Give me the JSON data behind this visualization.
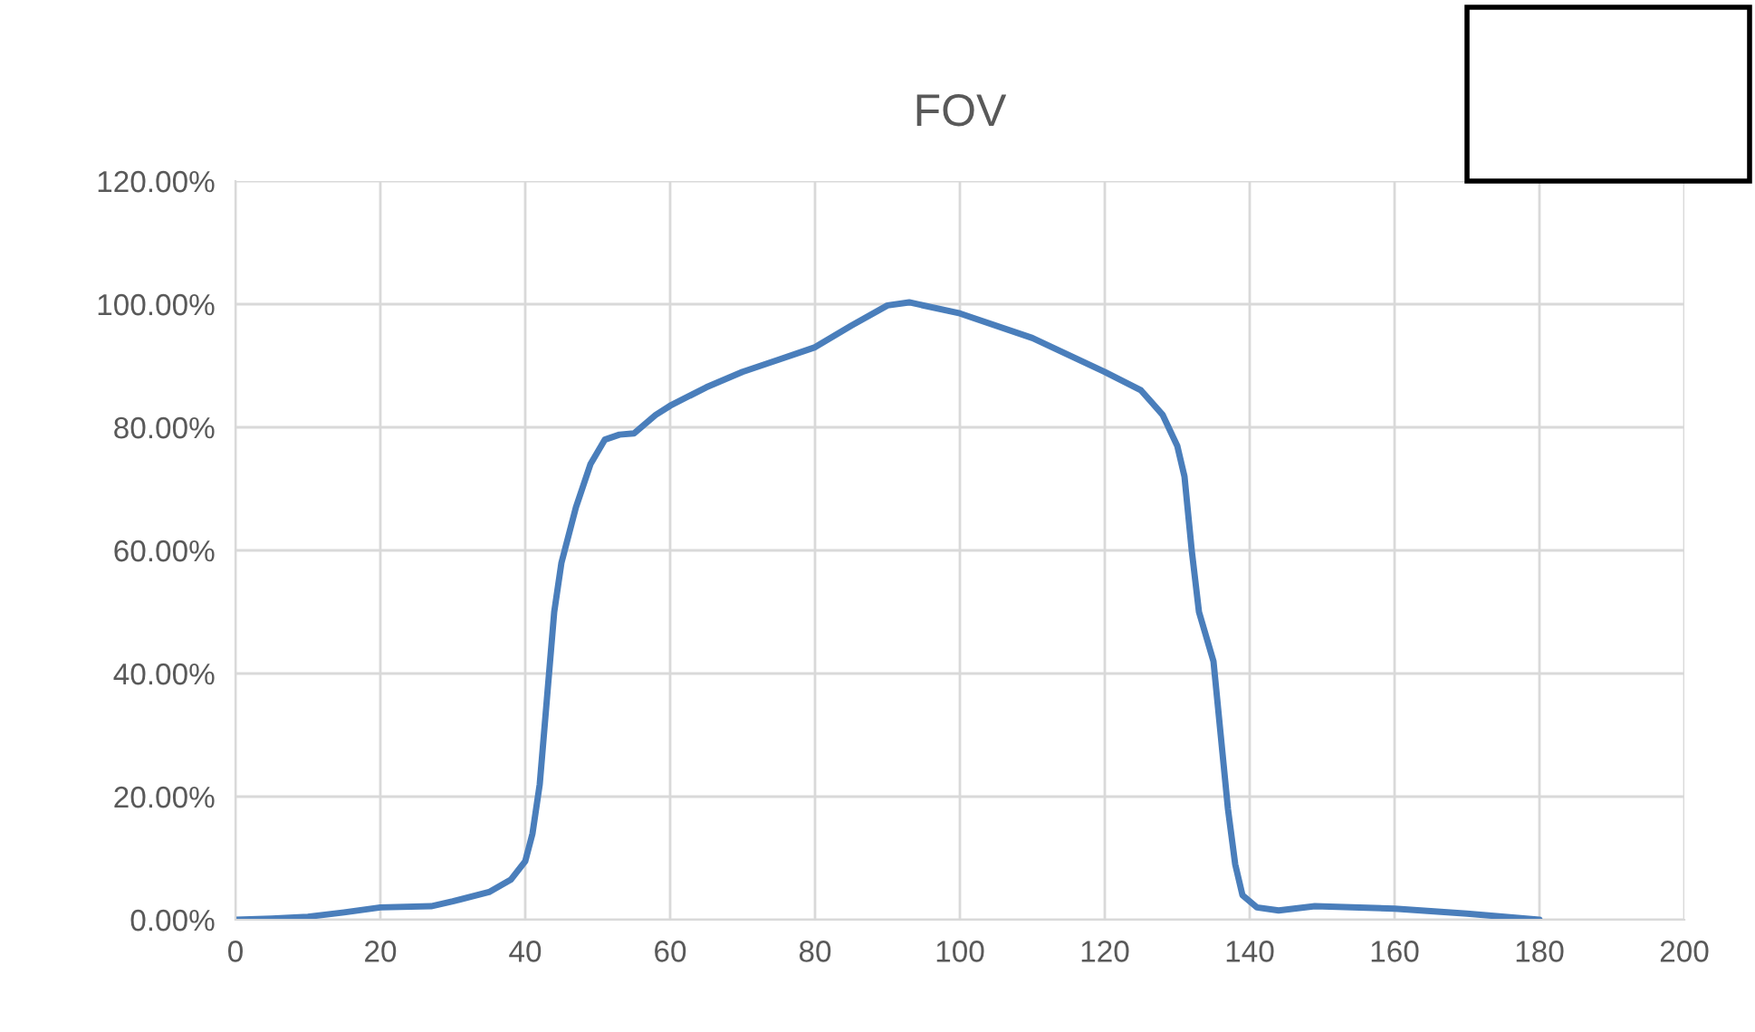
{
  "chart_data": {
    "type": "line",
    "title": "FOV",
    "x": [
      0,
      5,
      10,
      15,
      20,
      27,
      30,
      35,
      38,
      40,
      41,
      42,
      43,
      44,
      45,
      47,
      49,
      51,
      53,
      55,
      58,
      60,
      65,
      70,
      75,
      80,
      85,
      90,
      93,
      100,
      110,
      120,
      125,
      128,
      130,
      131,
      132,
      133,
      135,
      136,
      137,
      138,
      139,
      141,
      144,
      149,
      160,
      170,
      180
    ],
    "series": [
      {
        "color": "#4a7ebb",
        "values": [
          0,
          0.2,
          0.5,
          1.2,
          2.0,
          2.2,
          3.0,
          4.5,
          6.5,
          9.5,
          14,
          22,
          36,
          50,
          58,
          67,
          74,
          78,
          78.8,
          79,
          82,
          83.5,
          86.5,
          89,
          91,
          93,
          96.5,
          99.8,
          100.3,
          98.5,
          94.5,
          89,
          86,
          82,
          77,
          72,
          60,
          50,
          42,
          30,
          18,
          9,
          4,
          2,
          1.5,
          2.2,
          1.8,
          1.0,
          0
        ]
      }
    ],
    "xlim": [
      0,
      200
    ],
    "xticks": [
      0,
      20,
      40,
      60,
      80,
      100,
      120,
      140,
      160,
      180,
      200
    ],
    "ylim": [
      0,
      120
    ],
    "yticks": [
      {
        "value": 0,
        "label": "0.00%"
      },
      {
        "value": 20,
        "label": "20.00%"
      },
      {
        "value": 40,
        "label": "40.00%"
      },
      {
        "value": 60,
        "label": "60.00%"
      },
      {
        "value": 80,
        "label": "80.00%"
      },
      {
        "value": 100,
        "label": "100.00%"
      },
      {
        "value": 120,
        "label": "120.00%"
      }
    ],
    "grid": true,
    "marker": "none",
    "line_style": "solid",
    "legend": false
  }
}
